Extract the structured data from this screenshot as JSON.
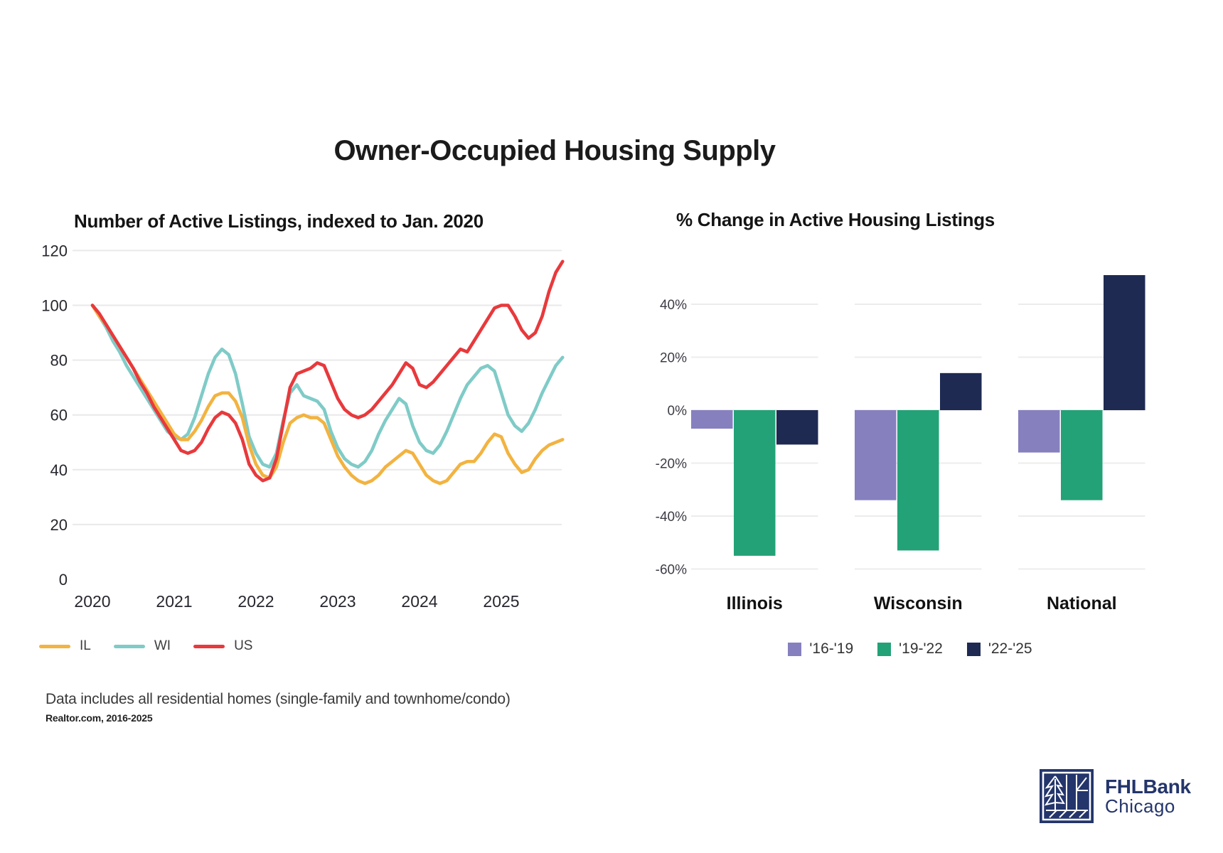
{
  "page_title": "Owner-Occupied Housing Supply",
  "chart_data": [
    {
      "type": "line",
      "title": "Number of Active Listings, indexed to Jan. 2020",
      "x_tick_labels": [
        "2020",
        "2021",
        "2022",
        "2023",
        "2024",
        "2025"
      ],
      "y_ticks": [
        0,
        20,
        40,
        60,
        80,
        100,
        120
      ],
      "ylim": [
        0,
        128
      ],
      "x_start": "Jan 2020",
      "x_frequency": "monthly",
      "grid": "horizontal",
      "legend_position": "bottom-left",
      "series": [
        {
          "name": "IL",
          "color": "#F2B340",
          "values": [
            100,
            96,
            93,
            89,
            85,
            81,
            77,
            73,
            69,
            65,
            61,
            57,
            53,
            51,
            51,
            54,
            58,
            63,
            67,
            68,
            68,
            65,
            59,
            49,
            42,
            38,
            37,
            41,
            50,
            57,
            59,
            60,
            59,
            59,
            57,
            51,
            45,
            41,
            38,
            36,
            35,
            36,
            38,
            41,
            43,
            45,
            47,
            46,
            42,
            38,
            36,
            35,
            36,
            39,
            42,
            43,
            43,
            46,
            50,
            53,
            52,
            46,
            42,
            39,
            40,
            44,
            47,
            49,
            50,
            51
          ]
        },
        {
          "name": "WI",
          "color": "#7FCBC7",
          "values": [
            100,
            96,
            92,
            87,
            83,
            78,
            74,
            70,
            66,
            62,
            58,
            54,
            52,
            51,
            53,
            59,
            67,
            75,
            81,
            84,
            82,
            75,
            64,
            52,
            46,
            42,
            41,
            46,
            58,
            68,
            71,
            67,
            66,
            65,
            62,
            54,
            48,
            44,
            42,
            41,
            43,
            47,
            53,
            58,
            62,
            66,
            64,
            56,
            50,
            47,
            46,
            49,
            54,
            60,
            66,
            71,
            74,
            77,
            78,
            76,
            68,
            60,
            56,
            54,
            57,
            62,
            68,
            73,
            78,
            81
          ]
        },
        {
          "name": "US",
          "color": "#E8393C",
          "values": [
            100,
            97,
            93,
            89,
            85,
            81,
            77,
            72,
            68,
            63,
            59,
            55,
            51,
            47,
            46,
            47,
            50,
            55,
            59,
            61,
            60,
            57,
            51,
            42,
            38,
            36,
            37,
            44,
            57,
            70,
            75,
            76,
            77,
            79,
            78,
            72,
            66,
            62,
            60,
            59,
            60,
            62,
            65,
            68,
            71,
            75,
            79,
            77,
            71,
            70,
            72,
            75,
            78,
            81,
            84,
            83,
            87,
            91,
            95,
            99,
            100,
            100,
            96,
            91,
            88,
            90,
            96,
            105,
            112,
            116
          ]
        }
      ]
    },
    {
      "type": "bar",
      "title": "% Change in Active Housing Listings",
      "categories": [
        "Illinois",
        "Wisconsin",
        "National"
      ],
      "y_ticks_percent": [
        40,
        20,
        0,
        -20,
        -40,
        -60
      ],
      "ylim_percent": [
        -60,
        52
      ],
      "unit": "percent",
      "grid": "horizontal-segmented",
      "legend_position": "bottom-center",
      "series": [
        {
          "name": "'16-'19",
          "color": "#8680BF",
          "values": [
            -7,
            -34,
            -16
          ]
        },
        {
          "name": "'19-'22",
          "color": "#23A277",
          "values": [
            -55,
            -53,
            -34
          ]
        },
        {
          "name": "'22-'25",
          "color": "#1E2A52",
          "values": [
            -13,
            14,
            51
          ]
        }
      ]
    }
  ],
  "footnote": {
    "line1": "Data includes all residential homes (single-family and townhome/condo)",
    "line2": "Realtor.com, 2016-2025"
  },
  "logo": {
    "name": "FHLBank",
    "city": "Chicago",
    "color": "#24356B"
  }
}
